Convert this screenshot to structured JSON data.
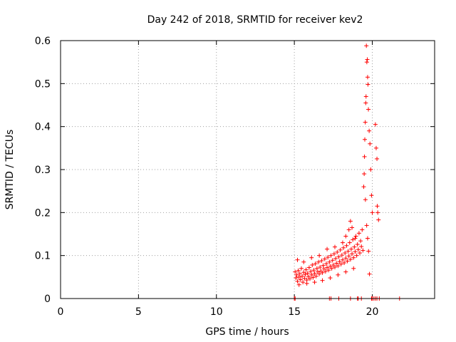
{
  "chart_data": {
    "type": "scatter",
    "title": "Day 242 of 2018, SRMTID for receiver kev2",
    "xlabel": "GPS time / hours",
    "ylabel": "SRMTID / TECUs",
    "xlim": [
      0,
      24
    ],
    "ylim": [
      0,
      0.6
    ],
    "xticks": [
      0,
      5,
      10,
      15,
      20
    ],
    "yticks": [
      0,
      0.1,
      0.2,
      0.3,
      0.4,
      0.5,
      0.6
    ],
    "grid": true,
    "marker": "+",
    "color": "#ff0000",
    "series": [
      {
        "name": "SRMTID",
        "points": [
          [
            15.05,
            0.062
          ],
          [
            15.1,
            0.048
          ],
          [
            15.15,
            0.055
          ],
          [
            15.2,
            0.04
          ],
          [
            15.25,
            0.065
          ],
          [
            15.3,
            0.05
          ],
          [
            15.35,
            0.058
          ],
          [
            15.4,
            0.044
          ],
          [
            15.45,
            0.07
          ],
          [
            15.5,
            0.052
          ],
          [
            15.55,
            0.038
          ],
          [
            15.6,
            0.061
          ],
          [
            15.65,
            0.047
          ],
          [
            15.7,
            0.056
          ],
          [
            15.75,
            0.067
          ],
          [
            15.8,
            0.043
          ],
          [
            15.85,
            0.059
          ],
          [
            15.9,
            0.051
          ],
          [
            15.95,
            0.072
          ],
          [
            16.0,
            0.046
          ],
          [
            16.05,
            0.063
          ],
          [
            16.1,
            0.055
          ],
          [
            16.15,
            0.078
          ],
          [
            16.2,
            0.049
          ],
          [
            16.25,
            0.066
          ],
          [
            16.3,
            0.058
          ],
          [
            16.35,
            0.081
          ],
          [
            16.4,
            0.052
          ],
          [
            16.45,
            0.07
          ],
          [
            16.5,
            0.062
          ],
          [
            16.55,
            0.085
          ],
          [
            16.6,
            0.057
          ],
          [
            16.65,
            0.073
          ],
          [
            16.7,
            0.064
          ],
          [
            16.75,
            0.088
          ],
          [
            16.8,
            0.06
          ],
          [
            16.85,
            0.077
          ],
          [
            16.9,
            0.069
          ],
          [
            16.95,
            0.092
          ],
          [
            17.0,
            0.063
          ],
          [
            17.05,
            0.081
          ],
          [
            17.1,
            0.072
          ],
          [
            17.15,
            0.096
          ],
          [
            17.2,
            0.066
          ],
          [
            17.25,
            0.085
          ],
          [
            17.3,
            0.075
          ],
          [
            17.35,
            0.1
          ],
          [
            17.4,
            0.07
          ],
          [
            17.45,
            0.089
          ],
          [
            17.5,
            0.078
          ],
          [
            17.55,
            0.104
          ],
          [
            17.6,
            0.073
          ],
          [
            17.65,
            0.093
          ],
          [
            17.7,
            0.082
          ],
          [
            17.75,
            0.108
          ],
          [
            17.8,
            0.076
          ],
          [
            17.85,
            0.097
          ],
          [
            17.9,
            0.086
          ],
          [
            17.95,
            0.113
          ],
          [
            18.0,
            0.08
          ],
          [
            18.05,
            0.101
          ],
          [
            18.1,
            0.09
          ],
          [
            18.15,
            0.118
          ],
          [
            18.2,
            0.083
          ],
          [
            18.25,
            0.106
          ],
          [
            18.3,
            0.094
          ],
          [
            18.35,
            0.123
          ],
          [
            18.4,
            0.087
          ],
          [
            18.45,
            0.11
          ],
          [
            18.5,
            0.099
          ],
          [
            18.55,
            0.13
          ],
          [
            18.6,
            0.091
          ],
          [
            18.65,
            0.115
          ],
          [
            18.7,
            0.104
          ],
          [
            18.75,
            0.137
          ],
          [
            18.8,
            0.095
          ],
          [
            18.85,
            0.12
          ],
          [
            18.9,
            0.109
          ],
          [
            18.95,
            0.145
          ],
          [
            19.0,
            0.1
          ],
          [
            19.05,
            0.126
          ],
          [
            19.1,
            0.114
          ],
          [
            19.15,
            0.152
          ],
          [
            19.2,
            0.106
          ],
          [
            19.25,
            0.134
          ],
          [
            19.3,
            0.121
          ],
          [
            19.35,
            0.16
          ],
          [
            19.4,
            0.112
          ],
          [
            15.2,
            0.09
          ],
          [
            15.6,
            0.085
          ],
          [
            16.1,
            0.095
          ],
          [
            16.6,
            0.1
          ],
          [
            17.1,
            0.115
          ],
          [
            17.6,
            0.12
          ],
          [
            18.1,
            0.13
          ],
          [
            18.3,
            0.145
          ],
          [
            18.5,
            0.16
          ],
          [
            18.6,
            0.18
          ],
          [
            18.7,
            0.165
          ],
          [
            18.9,
            0.14
          ],
          [
            15.3,
            0.032
          ],
          [
            15.8,
            0.035
          ],
          [
            16.3,
            0.038
          ],
          [
            16.8,
            0.042
          ],
          [
            17.3,
            0.048
          ],
          [
            17.8,
            0.055
          ],
          [
            18.3,
            0.062
          ],
          [
            18.8,
            0.07
          ],
          [
            19.45,
            0.26
          ],
          [
            19.5,
            0.33
          ],
          [
            19.55,
            0.41
          ],
          [
            19.6,
            0.47
          ],
          [
            19.65,
            0.55
          ],
          [
            19.7,
            0.515
          ],
          [
            19.75,
            0.44
          ],
          [
            19.8,
            0.39
          ],
          [
            19.85,
            0.36
          ],
          [
            19.9,
            0.3
          ],
          [
            19.95,
            0.24
          ],
          [
            20.0,
            0.2
          ],
          [
            19.62,
            0.588
          ],
          [
            19.68,
            0.556
          ],
          [
            19.72,
            0.498
          ],
          [
            19.58,
            0.455
          ],
          [
            19.52,
            0.37
          ],
          [
            19.48,
            0.29
          ],
          [
            19.56,
            0.23
          ],
          [
            19.64,
            0.17
          ],
          [
            19.7,
            0.14
          ],
          [
            19.76,
            0.11
          ],
          [
            19.82,
            0.057
          ],
          [
            20.2,
            0.405
          ],
          [
            20.25,
            0.35
          ],
          [
            20.3,
            0.325
          ],
          [
            20.35,
            0.2
          ],
          [
            20.4,
            0.183
          ],
          [
            20.32,
            0.215
          ],
          [
            15.0,
            0.0
          ],
          [
            15.05,
            0.0
          ],
          [
            17.25,
            0.0
          ],
          [
            17.35,
            0.0
          ],
          [
            17.85,
            0.0
          ],
          [
            18.6,
            0.0
          ],
          [
            19.05,
            0.0
          ],
          [
            19.1,
            0.0
          ],
          [
            19.3,
            0.0
          ],
          [
            19.95,
            0.0
          ],
          [
            20.0,
            0.0
          ],
          [
            20.1,
            0.0
          ],
          [
            20.2,
            0.0
          ],
          [
            20.3,
            0.0
          ],
          [
            20.45,
            0.0
          ],
          [
            21.75,
            0.0
          ]
        ]
      }
    ]
  }
}
